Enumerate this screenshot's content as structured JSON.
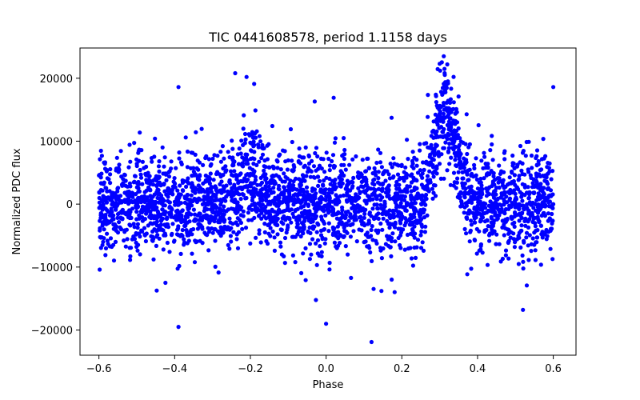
{
  "chart_data": {
    "type": "scatter",
    "title": "TIC 0441608578, period 1.1158 days",
    "xlabel": "Phase",
    "ylabel": "Normalized PDC flux",
    "xlim": [
      -0.65,
      0.66
    ],
    "ylim": [
      -24000,
      24800
    ],
    "xticks": [
      -0.6,
      -0.4,
      -0.2,
      0.0,
      0.2,
      0.4,
      0.6
    ],
    "xtick_labels": [
      "−0.6",
      "−0.4",
      "−0.2",
      "0.0",
      "0.2",
      "0.4",
      "0.6"
    ],
    "yticks": [
      -20000,
      -10000,
      0,
      10000,
      20000
    ],
    "ytick_labels": [
      "−20000",
      "−10000",
      "0",
      "10000",
      "20000"
    ],
    "grid": false,
    "marker_color": "#0000ff",
    "series": [
      {
        "name": "PDC flux",
        "x_range": [
          -0.6,
          0.6
        ],
        "baseline_scatter_std": 4000,
        "features": [
          {
            "kind": "bump",
            "center": -0.2,
            "amplitude": 4500,
            "width": 0.03
          },
          {
            "kind": "bump",
            "center": 0.315,
            "amplitude": 14000,
            "width": 0.03
          }
        ],
        "outliers": [
          {
            "x": -0.24,
            "y": 20800
          },
          {
            "x": -0.21,
            "y": 20200
          },
          {
            "x": -0.39,
            "y": 18600
          },
          {
            "x": 0.6,
            "y": 18600
          },
          {
            "x": 0.3,
            "y": 22300
          },
          {
            "x": 0.12,
            "y": -21900
          },
          {
            "x": -0.39,
            "y": -19500
          },
          {
            "x": 0.0,
            "y": -19000
          },
          {
            "x": -0.19,
            "y": 19100
          },
          {
            "x": 0.02,
            "y": 16900
          },
          {
            "x": -0.03,
            "y": 16300
          },
          {
            "x": 0.52,
            "y": -16800
          }
        ]
      }
    ]
  }
}
